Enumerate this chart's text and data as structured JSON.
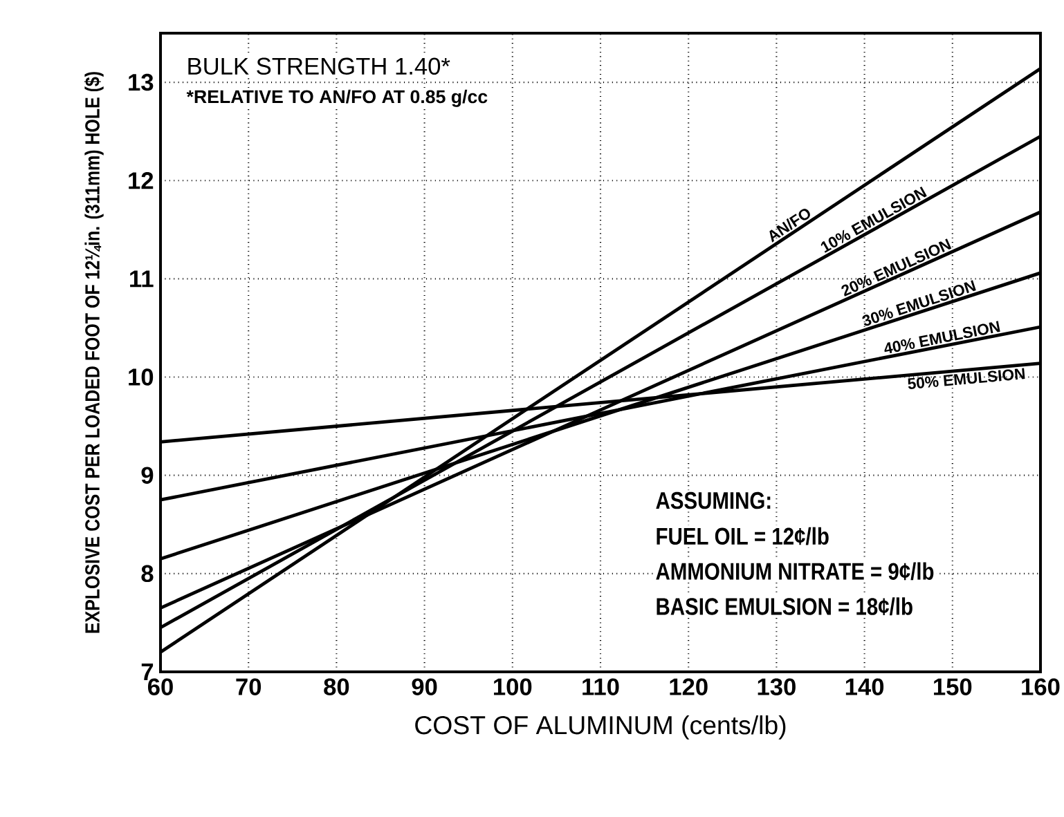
{
  "chart_data": {
    "type": "line",
    "xlabel": "COST OF ALUMINUM (cents/lb)",
    "ylabel": "EXPLOSIVE COST PER LOADED FOOT OF 12¼in. (311mm) HOLE ($)",
    "x": [
      60,
      160
    ],
    "series": [
      {
        "name": "AN/FO",
        "color": "#000000",
        "values": [
          7.2,
          13.14
        ]
      },
      {
        "name": "10% EMULSION",
        "color": "#000000",
        "values": [
          7.45,
          12.45
        ]
      },
      {
        "name": "20% EMULSION",
        "color": "#000000",
        "values": [
          7.65,
          11.68
        ]
      },
      {
        "name": "30% EMULSION",
        "color": "#000000",
        "values": [
          8.15,
          11.06
        ]
      },
      {
        "name": "40% EMULSION",
        "color": "#000000",
        "values": [
          8.75,
          10.51
        ]
      },
      {
        "name": "50% EMULSION",
        "color": "#000000",
        "values": [
          9.34,
          10.14
        ]
      }
    ],
    "xlim": [
      60,
      160
    ],
    "ylim": [
      7,
      13.5
    ],
    "xticks": [
      60,
      70,
      80,
      90,
      100,
      110,
      120,
      130,
      140,
      150,
      160
    ],
    "yticks": [
      7,
      8,
      9,
      10,
      11,
      12,
      13
    ],
    "grid": true,
    "line_style": "solid",
    "annotations": [
      "BULK STRENGTH 1.40*",
      "*RELATIVE TO AN/FO AT 0.85 g/cc",
      "ASSUMING:",
      "FUEL OIL = 12¢/lb",
      "AMMONIUM NITRATE = 9¢/lb",
      "BASIC EMULSION = 18¢/lb"
    ]
  }
}
